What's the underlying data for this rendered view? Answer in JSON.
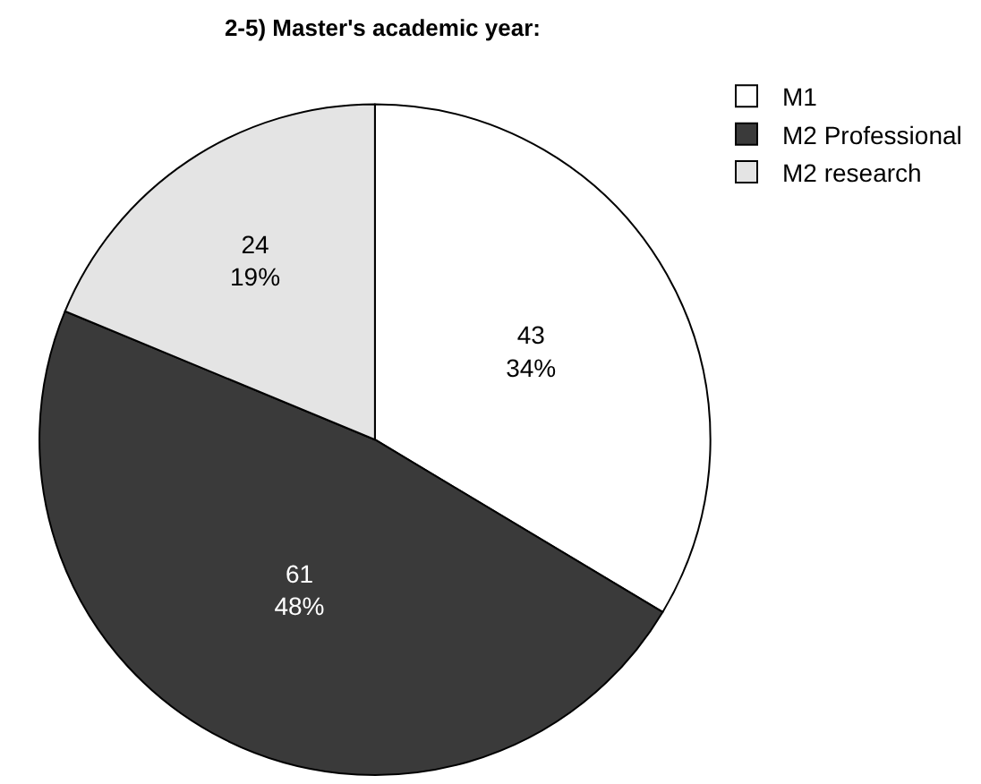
{
  "chart_data": {
    "type": "pie",
    "title": "2-5) Master's academic year:",
    "categories": [
      "M1",
      "M2 Professional",
      "M2 research"
    ],
    "values": [
      43,
      61,
      24
    ],
    "colors": [
      "#ffffff",
      "#3a3a3a",
      "#e4e4e4"
    ],
    "value_labels": [
      "43\n34%",
      "61\n48%",
      "24\n19%"
    ],
    "legend": "top right"
  }
}
